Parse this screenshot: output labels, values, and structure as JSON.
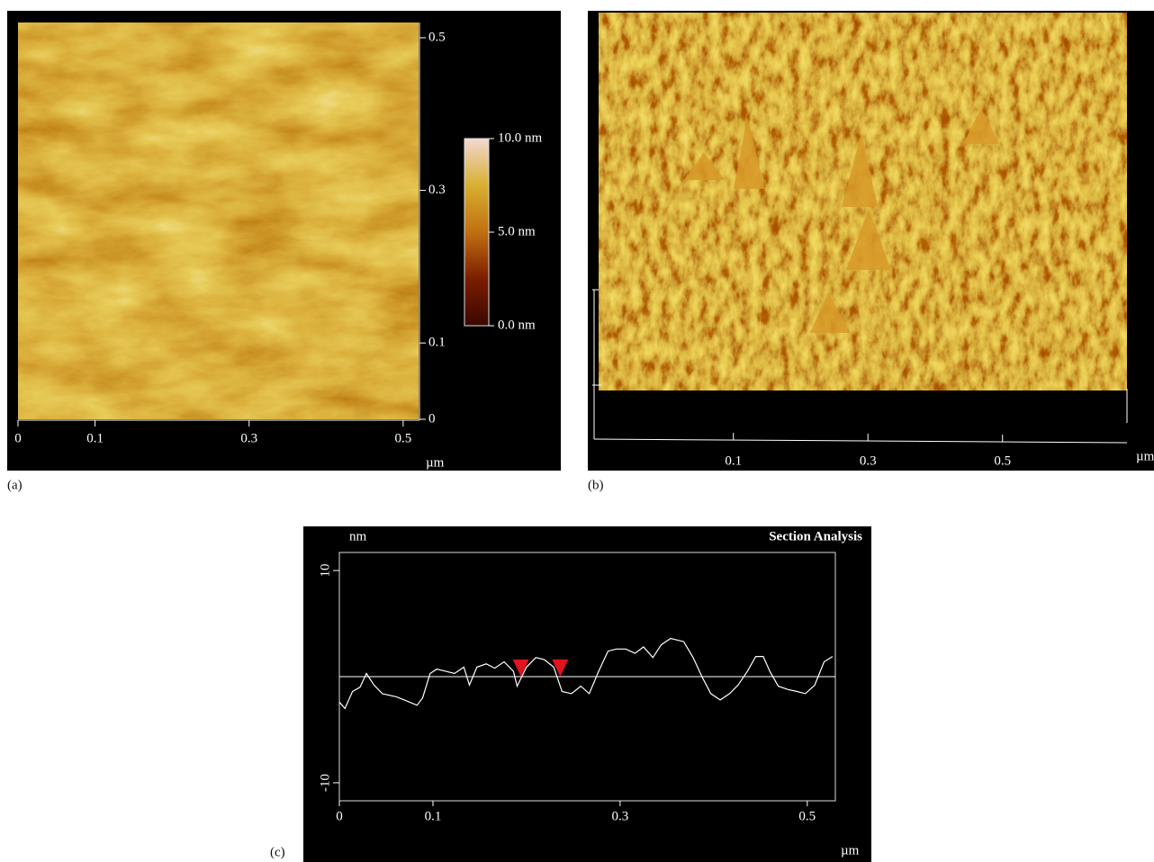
{
  "chart_data": [
    {
      "type": "image",
      "panel": "(a)",
      "xlabel": "µm",
      "xlim": [
        0,
        0.52
      ],
      "xticks": [
        0,
        0.1,
        0.3,
        0.5
      ],
      "ylim": [
        0,
        0.52
      ],
      "yticks": [
        0,
        0.1,
        0.3,
        0.5
      ],
      "colorbar": {
        "zlim": [
          0,
          10
        ],
        "ticks": [
          {
            "value": 10,
            "label": "10.0 nm"
          },
          {
            "value": 5,
            "label": "5.0 nm"
          },
          {
            "value": 0,
            "label": "0.0 nm"
          }
        ]
      }
    },
    {
      "type": "surface",
      "panel": "(b)",
      "xlabel": "µm",
      "xlim": [
        -0.107,
        0.685
      ],
      "xticks": [
        0.1,
        0.3,
        0.5
      ]
    },
    {
      "type": "line",
      "panel": "(c)",
      "title": "Section Analysis",
      "ylabel": "nm",
      "xlabel": "µm",
      "x": [
        0,
        0.006,
        0.014,
        0.022,
        0.029,
        0.037,
        0.046,
        0.061,
        0.072,
        0.083,
        0.089,
        0.097,
        0.104,
        0.114,
        0.123,
        0.133,
        0.139,
        0.147,
        0.157,
        0.166,
        0.176,
        0.186,
        0.19,
        0.2,
        0.21,
        0.219,
        0.229,
        0.238,
        0.248,
        0.258,
        0.267,
        0.277,
        0.287,
        0.296,
        0.306,
        0.316,
        0.325,
        0.335,
        0.344,
        0.354,
        0.368,
        0.378,
        0.388,
        0.397,
        0.407,
        0.417,
        0.426,
        0.436,
        0.445,
        0.453,
        0.46,
        0.469,
        0.479,
        0.489,
        0.498,
        0.508,
        0.518,
        0.527
      ],
      "values": [
        -2.4,
        -3.0,
        -1.4,
        -1.0,
        0.3,
        -0.8,
        -1.6,
        -1.9,
        -2.3,
        -2.7,
        -2.0,
        0.3,
        0.7,
        0.5,
        0.3,
        0.9,
        -0.8,
        0.9,
        1.2,
        0.8,
        1.4,
        0.5,
        -0.9,
        0.9,
        1.8,
        1.6,
        0.9,
        -1.4,
        -1.6,
        -0.9,
        -1.6,
        0.5,
        2.4,
        2.6,
        2.6,
        2.2,
        2.8,
        1.8,
        3.0,
        3.6,
        3.3,
        1.8,
        -0.1,
        -1.6,
        -2.2,
        -1.6,
        -0.8,
        0.5,
        1.9,
        1.9,
        0.5,
        -0.9,
        -1.2,
        -1.4,
        -1.6,
        -0.8,
        1.4,
        1.9
      ],
      "color": "#ffffff",
      "reference_line": 0,
      "xlim": [
        0,
        0.53
      ],
      "xticks": [
        0,
        0.1,
        0.3,
        0.5
      ],
      "ylim": [
        -11.7,
        11.7
      ],
      "yticks": [
        -10,
        10
      ],
      "cursors": [
        0.194,
        0.236
      ],
      "cursor_color": "#e0141e"
    }
  ]
}
